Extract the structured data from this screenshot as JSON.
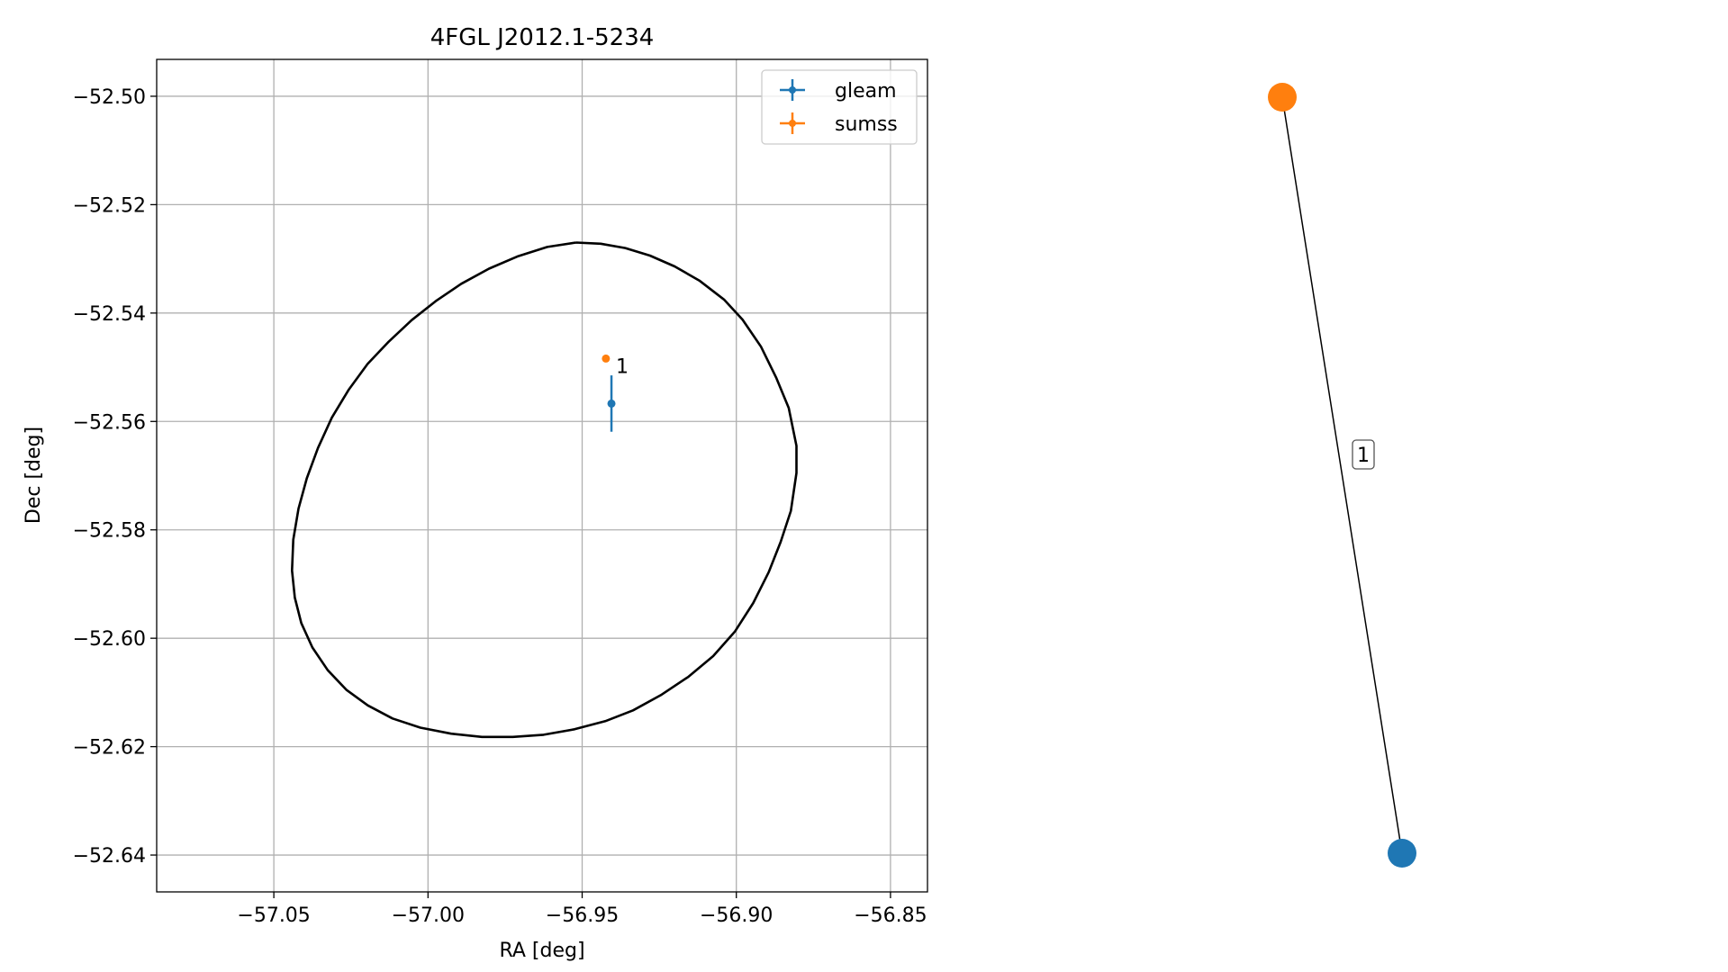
{
  "chart_data": [
    {
      "type": "scatter",
      "title": "4FGL J2012.1-5234",
      "xlabel": "RA [deg]",
      "ylabel": "Dec [deg]",
      "xlim": [
        -57.088,
        -56.838
      ],
      "ylim": [
        -52.6468,
        -52.4932
      ],
      "xticks": [
        -57.05,
        -57.0,
        -56.95,
        -56.9,
        -56.85
      ],
      "xtick_labels": [
        "−57.05",
        "−57.00",
        "−56.95",
        "−56.90",
        "−56.85"
      ],
      "yticks": [
        -52.5,
        -52.52,
        -52.54,
        -52.56,
        -52.58,
        -52.6,
        -52.62,
        -52.64
      ],
      "ytick_labels": [
        "−52.50",
        "−52.52",
        "−52.54",
        "−52.56",
        "−52.58",
        "−52.60",
        "−52.62",
        "−52.64"
      ],
      "grid": true,
      "legend_position": "top-right",
      "series": [
        {
          "name": "gleam",
          "color": "#1f77b4",
          "points": [
            {
              "x": -56.9405,
              "y": -52.5567,
              "xerr": 0.001,
              "yerr": 0.0052
            }
          ]
        },
        {
          "name": "sumss",
          "color": "#ff7f0e",
          "points": [
            {
              "x": -56.9423,
              "y": -52.5484,
              "xerr": 0.0003,
              "yerr": 0.0003
            }
          ]
        }
      ],
      "annotations": [
        {
          "text": "1",
          "x": -56.9405,
          "y": -52.5484
        }
      ],
      "ellipse": {
        "color": "#000000",
        "points": [
          [
            -56.952,
            -52.527
          ],
          [
            -56.944,
            -52.5272
          ],
          [
            -56.936,
            -52.528
          ],
          [
            -56.928,
            -52.5294
          ],
          [
            -56.92,
            -52.5314
          ],
          [
            -56.912,
            -52.534
          ],
          [
            -56.904,
            -52.5375
          ],
          [
            -56.898,
            -52.5412
          ],
          [
            -56.892,
            -52.5462
          ],
          [
            -56.887,
            -52.552
          ],
          [
            -56.883,
            -52.5575
          ],
          [
            -56.8805,
            -52.5645
          ],
          [
            -56.8805,
            -52.5695
          ],
          [
            -56.8823,
            -52.5765
          ],
          [
            -56.8856,
            -52.5822
          ],
          [
            -56.8895,
            -52.5878
          ],
          [
            -56.8945,
            -52.5935
          ],
          [
            -56.9005,
            -52.5988
          ],
          [
            -56.9075,
            -52.6033
          ],
          [
            -56.9155,
            -52.6071
          ],
          [
            -56.9245,
            -52.6105
          ],
          [
            -56.9335,
            -52.6133
          ],
          [
            -56.9425,
            -52.6153
          ],
          [
            -56.9525,
            -52.6168
          ],
          [
            -56.9625,
            -52.6178
          ],
          [
            -56.9725,
            -52.6182
          ],
          [
            -56.9825,
            -52.6182
          ],
          [
            -56.9925,
            -52.6176
          ],
          [
            -57.0025,
            -52.6165
          ],
          [
            -57.0115,
            -52.6148
          ],
          [
            -57.0195,
            -52.6124
          ],
          [
            -57.0265,
            -52.6095
          ],
          [
            -57.0325,
            -52.6059
          ],
          [
            -57.0375,
            -52.6017
          ],
          [
            -57.0411,
            -52.5972
          ],
          [
            -57.0432,
            -52.5925
          ],
          [
            -57.0441,
            -52.5875
          ],
          [
            -57.0437,
            -52.5818
          ],
          [
            -57.042,
            -52.5761
          ],
          [
            -57.0393,
            -52.5705
          ],
          [
            -57.0357,
            -52.5649
          ],
          [
            -57.0312,
            -52.5593
          ],
          [
            -57.0258,
            -52.5542
          ],
          [
            -57.0196,
            -52.5494
          ],
          [
            -57.0128,
            -52.5453
          ],
          [
            -57.0053,
            -52.5413
          ],
          [
            -56.9975,
            -52.5378
          ],
          [
            -56.9892,
            -52.5346
          ],
          [
            -56.9802,
            -52.5318
          ],
          [
            -56.9707,
            -52.5295
          ],
          [
            -56.9613,
            -52.5278
          ],
          [
            -56.952,
            -52.527
          ]
        ]
      }
    },
    {
      "type": "diagram",
      "nodes": [
        {
          "id": "sumss",
          "color": "#ff7f0e"
        },
        {
          "id": "gleam",
          "color": "#1f77b4"
        }
      ],
      "edges": [
        {
          "source": "sumss",
          "target": "gleam",
          "label": "1"
        }
      ]
    }
  ]
}
